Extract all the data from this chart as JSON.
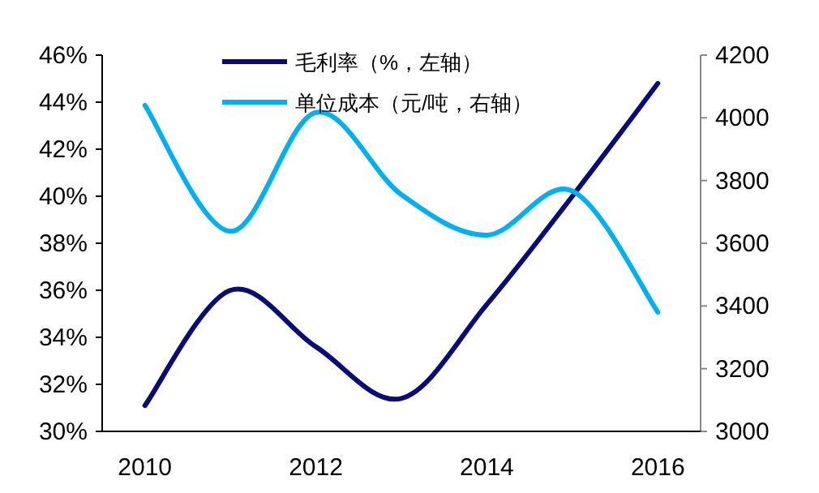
{
  "chart_data": {
    "type": "line",
    "categories": [
      "2010",
      null,
      "2012",
      null,
      "2014",
      null,
      "2016"
    ],
    "series": [
      {
        "name": "毛利率（%，左轴）",
        "color": "#0a0a78",
        "values": [
          31.1,
          36.0,
          33.6,
          31.4,
          35.4,
          40.0,
          44.8
        ]
      },
      {
        "name": "单位成本（元/吨，右轴）",
        "color": "#00b0f0",
        "axis": "y2",
        "values": [
          4040,
          3638,
          4017,
          3755,
          3626,
          3767,
          3380
        ]
      }
    ],
    "ylim": [
      30,
      46
    ],
    "yticks": [
      {
        "value": 30,
        "label": "30%"
      },
      {
        "value": 32,
        "label": "32%"
      },
      {
        "value": 34,
        "label": "34%"
      },
      {
        "value": 36,
        "label": "36%"
      },
      {
        "value": 38,
        "label": "38%"
      },
      {
        "value": 40,
        "label": "40%"
      },
      {
        "value": 42,
        "label": "42%"
      },
      {
        "value": 44,
        "label": "44%"
      },
      {
        "value": 46,
        "label": "46%"
      }
    ],
    "y2lim": [
      3000,
      4200
    ],
    "y2ticks": [
      3000,
      3200,
      3400,
      3600,
      3800,
      4000,
      4200
    ],
    "legend": "top",
    "grid": false,
    "marker": "none",
    "line_style": "solid"
  }
}
